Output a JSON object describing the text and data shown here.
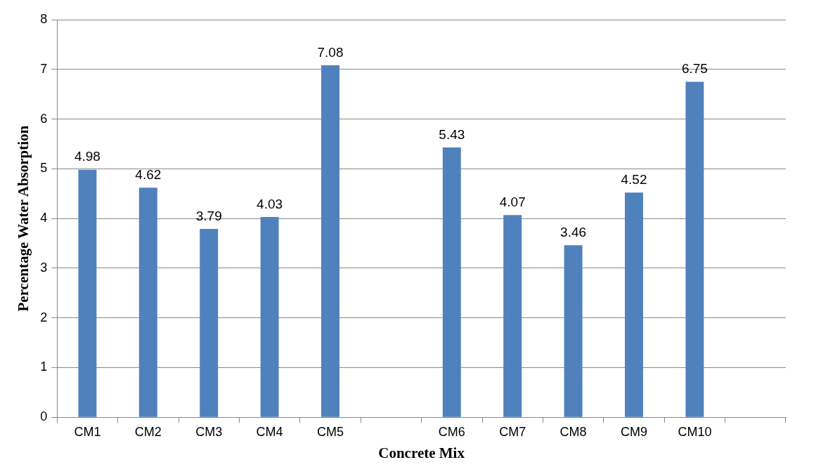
{
  "chart_data": {
    "type": "bar",
    "xlabel": "Concrete Mix",
    "ylabel": "Percentage Water Absorption",
    "categories": [
      "CM1",
      "CM2",
      "CM3",
      "CM4",
      "CM5",
      null,
      "CM6",
      "CM7",
      "CM8",
      "CM9",
      "CM10",
      null
    ],
    "values": [
      4.98,
      4.62,
      3.79,
      4.03,
      7.08,
      null,
      5.43,
      4.07,
      3.46,
      4.52,
      6.75,
      null
    ],
    "color": "#4f81bd",
    "ylim": [
      0,
      8
    ],
    "yticks": [
      0,
      1,
      2,
      3,
      4,
      5,
      6,
      7,
      8
    ],
    "grid": "y",
    "legend": false,
    "data_labels": true
  }
}
